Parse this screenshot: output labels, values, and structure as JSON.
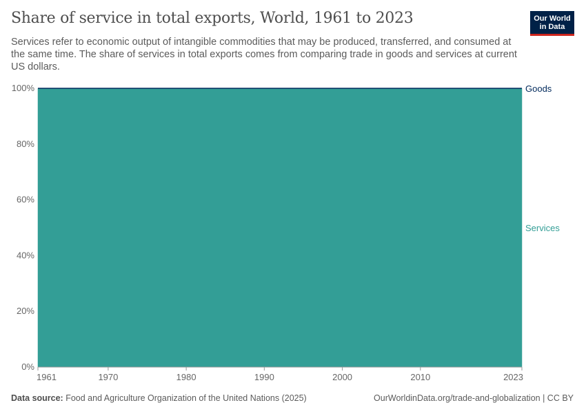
{
  "header": {
    "title": "Share of service in total exports, World, 1961 to 2023",
    "subtitle": "Services refer to economic output of intangible commodities that may be produced, transferred, and consumed at the same time. The share of services in total exports comes from comparing trade in goods and services at current US dollars.",
    "logo_text": "Our World in Data"
  },
  "footer": {
    "source_label": "Data source:",
    "source": " Food and Agriculture Organization of the United Nations (2025)",
    "url": "OurWorldinData.org/trade-and-globalization | CC BY"
  },
  "chart_data": {
    "type": "area",
    "stacked": true,
    "xlim": [
      1961,
      2023
    ],
    "ylim": [
      0,
      100
    ],
    "grid": true,
    "legend": "right-labels",
    "x": [
      1961,
      1962,
      1963,
      1964,
      1965,
      1966,
      1967,
      1968,
      1969,
      1970,
      1971,
      1972,
      1973,
      1974,
      1975,
      1976,
      1977,
      1978,
      1979,
      1980,
      1981,
      1982,
      1983,
      1984,
      1985,
      1986,
      1987,
      1988,
      1989,
      1990,
      1991,
      1992,
      1993,
      1994,
      1995,
      1996,
      1997,
      1998,
      1999,
      2000,
      2001,
      2002,
      2003,
      2004,
      2005,
      2006,
      2007,
      2008,
      2009,
      2010,
      2011,
      2012,
      2013,
      2014,
      2015,
      2016,
      2017,
      2018,
      2019,
      2020,
      2021,
      2022,
      2023
    ],
    "x_ticks": [
      "1961",
      "1970",
      "1980",
      "1990",
      "2000",
      "2010",
      "2023"
    ],
    "y_ticks": [
      "0%",
      "20%",
      "40%",
      "60%",
      "80%",
      "100%"
    ],
    "series": [
      {
        "name": "Services",
        "color": "#339e96",
        "values": [
          100,
          100,
          100,
          100,
          100,
          100,
          100,
          100,
          100,
          100,
          100,
          100,
          100,
          100,
          100,
          100,
          100,
          100,
          100,
          100,
          100,
          100,
          100,
          100,
          100,
          100,
          100,
          100,
          100,
          100,
          100,
          100,
          100,
          100,
          100,
          100,
          100,
          100,
          100,
          100,
          100,
          100,
          100,
          100,
          100,
          100,
          100,
          100,
          100,
          100,
          100,
          100,
          100,
          100,
          100,
          100,
          100,
          100,
          100,
          100,
          100,
          100,
          100
        ]
      },
      {
        "name": "Goods",
        "color": "#00295b",
        "values": [
          0,
          0,
          0,
          0,
          0,
          0,
          0,
          0,
          0,
          0,
          0,
          0,
          0,
          0,
          0,
          0,
          0,
          0,
          0,
          0,
          0,
          0,
          0,
          0,
          0,
          0,
          0,
          0,
          0,
          0,
          0,
          0,
          0,
          0,
          0,
          0,
          0,
          0,
          0,
          0,
          0,
          0,
          0,
          0,
          0,
          0,
          0,
          0,
          0,
          0,
          0,
          0,
          0,
          0,
          0,
          0,
          0,
          0,
          0,
          0,
          0,
          0,
          0
        ]
      }
    ]
  }
}
